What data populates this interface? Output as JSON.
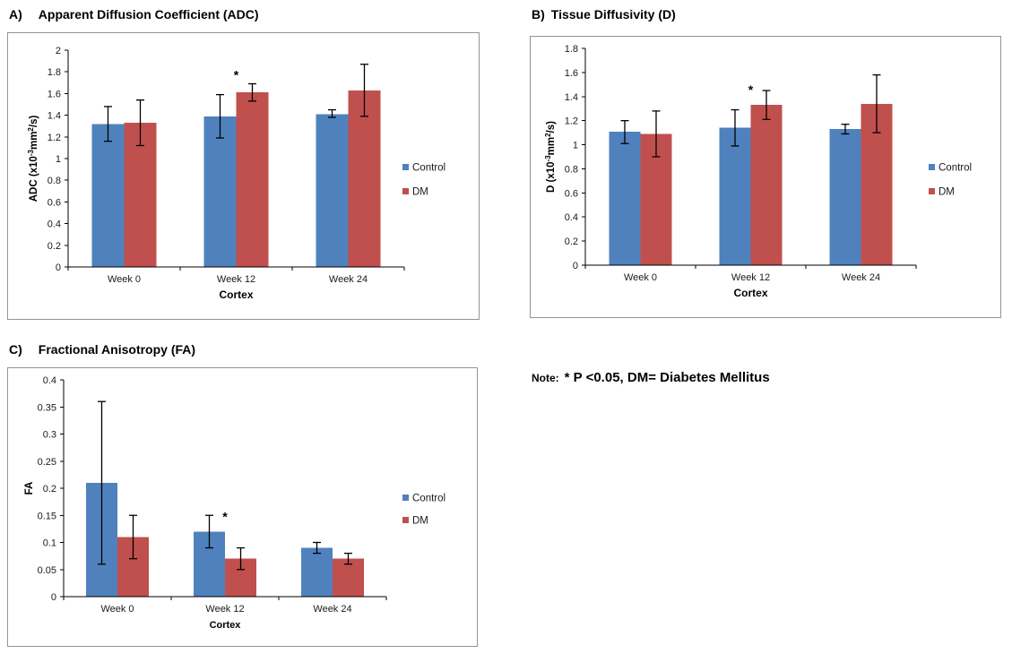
{
  "colors": {
    "control": "#4F81BD",
    "dm": "#C0504D",
    "axis": "#000000",
    "text": "#1a1a1a",
    "panel_border": "#939393",
    "background": "#FFFFFF"
  },
  "note": {
    "prefix": "Note:",
    "text": "* P <0.05, DM= Diabetes Mellitus"
  },
  "chart_data": [
    {
      "type": "bar",
      "panel_label": "A)",
      "panel_title": "Apparent Diffusion Coefficient (ADC)",
      "title": "Apparent Diffusion Coefficient (ADC)",
      "xlabel": "Cortex",
      "ylabel": "ADC (x10-3mm2/s)",
      "ylabel_parts": [
        {
          "t": "ADC  (x10"
        },
        {
          "t": "-3",
          "sup": true
        },
        {
          "t": "mm"
        },
        {
          "t": "2",
          "sup": true
        },
        {
          "t": "/s)"
        }
      ],
      "categories": [
        "Week 0",
        "Week 12",
        "Week 24"
      ],
      "ylim": [
        0,
        2
      ],
      "ytick_step": 0.2,
      "grid": false,
      "legend_position": "right",
      "legend_entries": [
        "Control",
        "DM"
      ],
      "series": [
        {
          "name": "Control",
          "color_key": "control",
          "values": [
            1.32,
            1.39,
            1.41
          ],
          "err_low": [
            1.16,
            1.19,
            1.38
          ],
          "err_high": [
            1.48,
            1.59,
            1.45
          ]
        },
        {
          "name": "DM",
          "color_key": "dm",
          "values": [
            1.33,
            1.61,
            1.63
          ],
          "err_low": [
            1.12,
            1.53,
            1.39
          ],
          "err_high": [
            1.54,
            1.69,
            1.87
          ]
        }
      ],
      "annotations": [
        {
          "symbol": "*",
          "category_index": 1,
          "y": 1.73
        }
      ]
    },
    {
      "type": "bar",
      "panel_label": "B)",
      "panel_title": "Tissue Diffusivity (D)",
      "title": "Tissue Diffusivity (D)",
      "xlabel": "Cortex",
      "ylabel": "D (x10-3mm2/s)",
      "ylabel_parts": [
        {
          "t": "D  (x10"
        },
        {
          "t": "-3",
          "sup": true
        },
        {
          "t": "mm"
        },
        {
          "t": "2",
          "sup": true
        },
        {
          "t": "/s)"
        }
      ],
      "categories": [
        "Week 0",
        "Week 12",
        "Week 24"
      ],
      "ylim": [
        0,
        1.8
      ],
      "ytick_step": 0.2,
      "grid": false,
      "legend_position": "right",
      "legend_entries": [
        "Control",
        "DM"
      ],
      "series": [
        {
          "name": "Control",
          "color_key": "control",
          "values": [
            1.11,
            1.14,
            1.13
          ],
          "err_low": [
            1.01,
            0.99,
            1.09
          ],
          "err_high": [
            1.2,
            1.29,
            1.17
          ]
        },
        {
          "name": "DM",
          "color_key": "dm",
          "values": [
            1.09,
            1.33,
            1.34
          ],
          "err_low": [
            0.9,
            1.21,
            1.1
          ],
          "err_high": [
            1.28,
            1.45,
            1.58
          ]
        }
      ],
      "annotations": [
        {
          "symbol": "*",
          "category_index": 1,
          "y": 1.42
        }
      ]
    },
    {
      "type": "bar",
      "panel_label": "C)",
      "panel_title": "Fractional Anisotropy (FA)",
      "title": "Fractional Anisotropy (FA)",
      "xlabel": "Cortex",
      "ylabel": "FA",
      "ylabel_parts": [
        {
          "t": "FA"
        }
      ],
      "categories": [
        "Week 0",
        "Week 12",
        "Week 24"
      ],
      "ylim": [
        0,
        0.4
      ],
      "ytick_step": 0.05,
      "grid": false,
      "legend_position": "right",
      "legend_entries": [
        "Control",
        "DM"
      ],
      "series": [
        {
          "name": "Control",
          "color_key": "control",
          "values": [
            0.21,
            0.12,
            0.09
          ],
          "err_low": [
            0.06,
            0.09,
            0.08
          ],
          "err_high": [
            0.36,
            0.15,
            0.1
          ]
        },
        {
          "name": "DM",
          "color_key": "dm",
          "values": [
            0.11,
            0.07,
            0.07
          ],
          "err_low": [
            0.07,
            0.05,
            0.06
          ],
          "err_high": [
            0.15,
            0.09,
            0.08
          ]
        }
      ],
      "annotations": [
        {
          "symbol": "*",
          "category_index": 1,
          "y": 0.14
        }
      ]
    }
  ]
}
